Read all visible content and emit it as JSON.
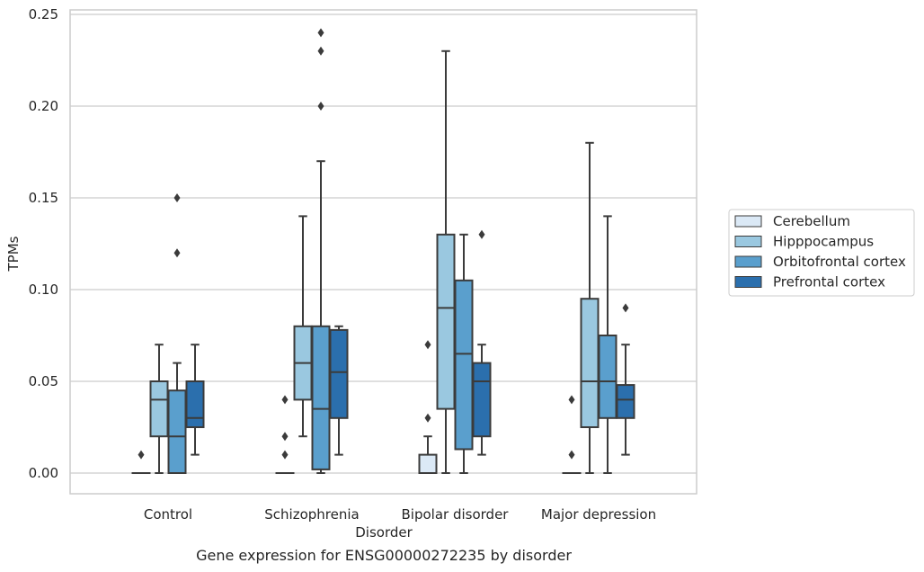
{
  "chart_data": {
    "type": "box",
    "title": "",
    "caption": "Gene expression for ENSG00000272235 by disorder",
    "xlabel": "Disorder",
    "ylabel": "TPMs",
    "ylim": [
      -0.012,
      0.252
    ],
    "yticks": [
      0.0,
      0.05,
      0.1,
      0.15,
      0.2,
      0.25
    ],
    "ytick_labels": [
      "0.00",
      "0.05",
      "0.10",
      "0.15",
      "0.20",
      "0.25"
    ],
    "grid": true,
    "legend_position": "right",
    "categories": [
      "Control",
      "Schizophrenia",
      "Bipolar disorder",
      "Major depression"
    ],
    "series": [
      {
        "name": "Cerebellum",
        "color": "#dbe9f6",
        "boxes": [
          {
            "q1": 0.0,
            "median": 0.0,
            "q3": 0.0,
            "whisker_low": 0.0,
            "whisker_high": 0.0,
            "outliers": [
              0.01
            ]
          },
          {
            "q1": 0.0,
            "median": 0.0,
            "q3": 0.0,
            "whisker_low": 0.0,
            "whisker_high": 0.0,
            "outliers": [
              0.01,
              0.02,
              0.04
            ]
          },
          {
            "q1": 0.0,
            "median": 0.0,
            "q3": 0.01,
            "whisker_low": 0.0,
            "whisker_high": 0.02,
            "outliers": [
              0.03,
              0.07
            ]
          },
          {
            "q1": 0.0,
            "median": 0.0,
            "q3": 0.0,
            "whisker_low": 0.0,
            "whisker_high": 0.0,
            "outliers": [
              0.01,
              0.04
            ]
          }
        ]
      },
      {
        "name": "Hipppocampus",
        "color": "#9ac8e0",
        "boxes": [
          {
            "q1": 0.02,
            "median": 0.04,
            "q3": 0.05,
            "whisker_low": 0.0,
            "whisker_high": 0.07,
            "outliers": []
          },
          {
            "q1": 0.04,
            "median": 0.06,
            "q3": 0.08,
            "whisker_low": 0.02,
            "whisker_high": 0.14,
            "outliers": []
          },
          {
            "q1": 0.035,
            "median": 0.09,
            "q3": 0.13,
            "whisker_low": 0.0,
            "whisker_high": 0.23,
            "outliers": []
          },
          {
            "q1": 0.025,
            "median": 0.05,
            "q3": 0.095,
            "whisker_low": 0.0,
            "whisker_high": 0.18,
            "outliers": []
          }
        ]
      },
      {
        "name": "Orbitofrontal cortex",
        "color": "#5a9fcd",
        "boxes": [
          {
            "q1": 0.0,
            "median": 0.02,
            "q3": 0.045,
            "whisker_low": 0.0,
            "whisker_high": 0.06,
            "outliers": [
              0.12,
              0.15
            ]
          },
          {
            "q1": 0.002,
            "median": 0.035,
            "q3": 0.08,
            "whisker_low": 0.0,
            "whisker_high": 0.17,
            "outliers": [
              0.2,
              0.23,
              0.24
            ]
          },
          {
            "q1": 0.013,
            "median": 0.065,
            "q3": 0.105,
            "whisker_low": 0.0,
            "whisker_high": 0.13,
            "outliers": []
          },
          {
            "q1": 0.03,
            "median": 0.05,
            "q3": 0.075,
            "whisker_low": 0.0,
            "whisker_high": 0.14,
            "outliers": []
          }
        ]
      },
      {
        "name": "Prefrontal cortex",
        "color": "#2b6fad",
        "boxes": [
          {
            "q1": 0.025,
            "median": 0.03,
            "q3": 0.05,
            "whisker_low": 0.01,
            "whisker_high": 0.07,
            "outliers": []
          },
          {
            "q1": 0.03,
            "median": 0.055,
            "q3": 0.078,
            "whisker_low": 0.01,
            "whisker_high": 0.08,
            "outliers": []
          },
          {
            "q1": 0.02,
            "median": 0.05,
            "q3": 0.06,
            "whisker_low": 0.01,
            "whisker_high": 0.07,
            "outliers": [
              0.13
            ]
          },
          {
            "q1": 0.03,
            "median": 0.04,
            "q3": 0.048,
            "whisker_low": 0.01,
            "whisker_high": 0.07,
            "outliers": [
              0.09
            ]
          }
        ]
      }
    ]
  }
}
